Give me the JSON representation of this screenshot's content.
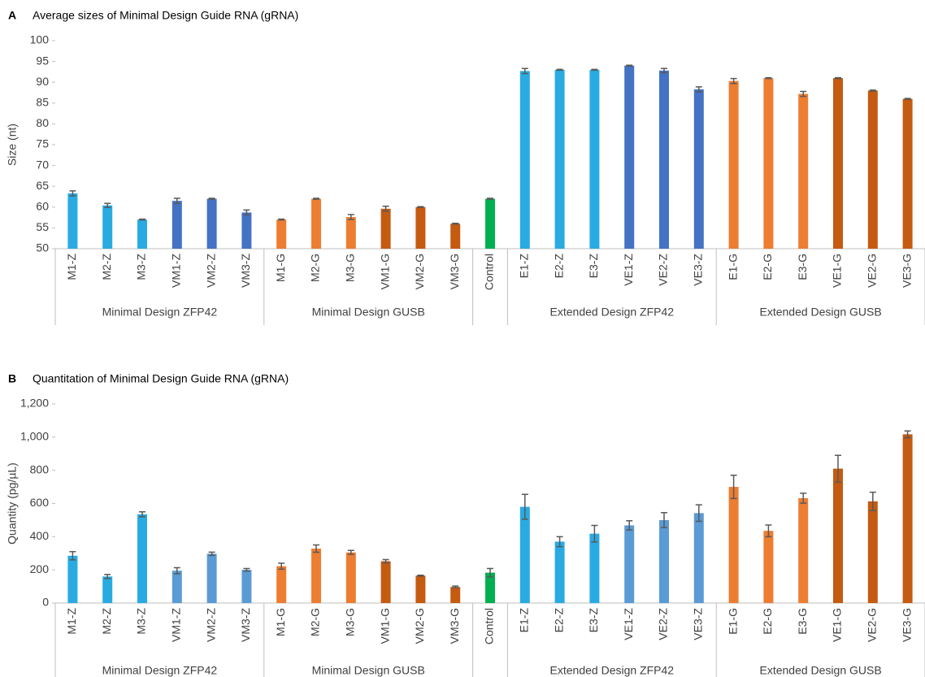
{
  "chart_data": [
    {
      "type": "bar",
      "panel": "A",
      "title": "Average sizes of Minimal Design Guide RNA (gRNA)",
      "y_label": "Size (nt)",
      "groups": [
        {
          "name": "Minimal Design ZFP42",
          "categories": [
            "M1-Z",
            "M2-Z",
            "M3-Z",
            "VM1-Z",
            "VM2-Z",
            "VM3-Z"
          ]
        },
        {
          "name": "Minimal Design GUSB",
          "categories": [
            "M1-G",
            "M2-G",
            "M3-G",
            "VM1-G",
            "VM2-G",
            "VM3-G"
          ]
        },
        {
          "name": null,
          "categories": [
            "Control"
          ]
        },
        {
          "name": "Extended Design ZFP42",
          "categories": [
            "E1-Z",
            "E2-Z",
            "E3-Z",
            "VE1-Z",
            "VE2-Z",
            "VE3-Z"
          ]
        },
        {
          "name": "Extended Design GUSB",
          "categories": [
            "E1-G",
            "E2-G",
            "E3-G",
            "VE1-G",
            "VE2-G",
            "VE3-G"
          ]
        }
      ],
      "values": [
        63.3,
        60.4,
        57,
        61.5,
        62,
        58.7,
        57,
        62,
        57.6,
        59.6,
        60,
        56,
        62,
        92.7,
        93,
        93,
        94,
        92.8,
        88.3,
        90.3,
        91,
        87.2,
        91,
        88,
        86
      ],
      "errors": [
        0.6,
        0.5,
        0.1,
        0.6,
        0.1,
        0.6,
        0.1,
        0.1,
        0.6,
        0.6,
        0.1,
        0.1,
        0.1,
        0.6,
        0.1,
        0.1,
        0.1,
        0.5,
        0.6,
        0.6,
        0.1,
        0.6,
        0.1,
        0.1,
        0.1
      ],
      "colors": [
        "#29abe2",
        "#29abe2",
        "#29abe2",
        "#4472c4",
        "#4472c4",
        "#4472c4",
        "#ed7d31",
        "#ed7d31",
        "#ed7d31",
        "#c55a11",
        "#c55a11",
        "#c55a11",
        "#00b050",
        "#29abe2",
        "#29abe2",
        "#29abe2",
        "#4472c4",
        "#4472c4",
        "#4472c4",
        "#ed7d31",
        "#ed7d31",
        "#ed7d31",
        "#c55a11",
        "#c55a11",
        "#c55a11"
      ],
      "ylim": [
        50,
        100
      ],
      "yticks": [
        50,
        55,
        60,
        65,
        70,
        75,
        80,
        85,
        90,
        95,
        100
      ]
    },
    {
      "type": "bar",
      "panel": "B",
      "title": "Quantitation of Minimal Design Guide RNA (gRNA)",
      "y_label": "Quantity (pg/µL)",
      "groups": [
        {
          "name": "Minimal Design ZFP42",
          "categories": [
            "M1-Z",
            "M2-Z",
            "M3-Z",
            "VM1-Z",
            "VM2-Z",
            "VM3-Z"
          ]
        },
        {
          "name": "Minimal Design GUSB",
          "categories": [
            "M1-G",
            "M2-G",
            "M3-G",
            "VM1-G",
            "VM2-G",
            "VM3-G"
          ]
        },
        {
          "name": null,
          "categories": [
            "Control"
          ]
        },
        {
          "name": "Extended Design ZFP42",
          "categories": [
            "E1-Z",
            "E2-Z",
            "E3-Z",
            "VE1-Z",
            "VE2-Z",
            "VE3-Z"
          ]
        },
        {
          "name": "Extended Design GUSB",
          "categories": [
            "E1-G",
            "E2-G",
            "E3-G",
            "VE1-G",
            "VE2-G",
            "VE3-G"
          ]
        }
      ],
      "values": [
        285,
        160,
        535,
        195,
        297,
        200,
        222,
        328,
        305,
        252,
        165,
        97,
        183,
        580,
        370,
        418,
        468,
        500,
        542,
        700,
        435,
        632,
        810,
        613,
        1017
      ],
      "errors": [
        25,
        12,
        15,
        18,
        10,
        8,
        18,
        22,
        12,
        10,
        3,
        5,
        25,
        75,
        30,
        50,
        28,
        45,
        50,
        70,
        35,
        30,
        80,
        55,
        20
      ],
      "colors": [
        "#29abe2",
        "#29abe2",
        "#29abe2",
        "#5b9bd5",
        "#5b9bd5",
        "#5b9bd5",
        "#ed7d31",
        "#ed7d31",
        "#ed7d31",
        "#c55a11",
        "#c55a11",
        "#c55a11",
        "#00b050",
        "#29abe2",
        "#29abe2",
        "#29abe2",
        "#5b9bd5",
        "#5b9bd5",
        "#5b9bd5",
        "#ed7d31",
        "#ed7d31",
        "#ed7d31",
        "#c55a11",
        "#c55a11",
        "#c55a11"
      ],
      "ylim": [
        0,
        1200
      ],
      "yticks": [
        0,
        200,
        400,
        600,
        800,
        {
          "value": 1000,
          "label": "1,000"
        },
        {
          "value": 1200,
          "label": "1,200"
        }
      ]
    }
  ]
}
